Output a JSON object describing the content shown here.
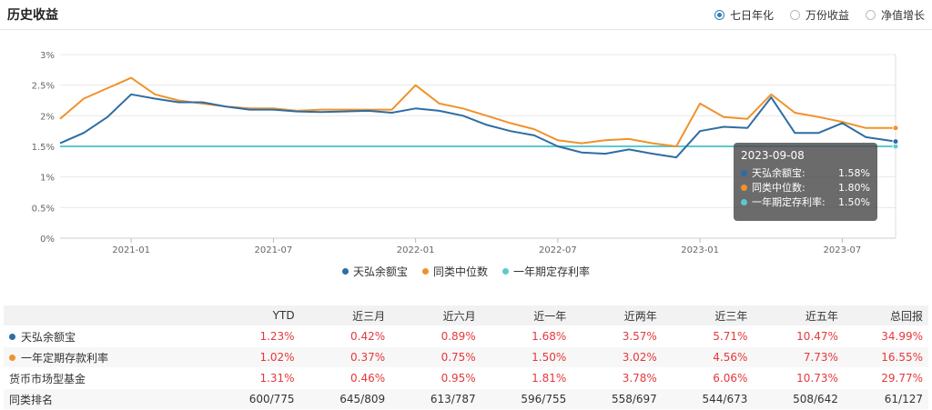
{
  "header": {
    "title": "历史收益",
    "radios": [
      {
        "label": "七日年化",
        "selected": true
      },
      {
        "label": "万份收益",
        "selected": false
      },
      {
        "label": "净值增长",
        "selected": false
      }
    ]
  },
  "colors": {
    "fund": "#2e6da4",
    "median": "#f0922b",
    "deposit": "#5ec8cf",
    "positive": "#e4393c"
  },
  "chart_data": {
    "type": "line",
    "title": "",
    "x_start": "2020-10",
    "x_end": "2023-09-08",
    "x_ticks": [
      "2021-01",
      "2021-07",
      "2022-01",
      "2022-07",
      "2023-01",
      "2023-07"
    ],
    "y_ticks": [
      "0%",
      "0.5%",
      "1%",
      "1.5%",
      "2%",
      "2.5%",
      "3%"
    ],
    "ylim": [
      0,
      3
    ],
    "series": [
      {
        "name": "天弘余额宝",
        "color": "#2e6da4",
        "x": [
          "2020-10",
          "2020-11",
          "2020-12",
          "2021-01",
          "2021-02",
          "2021-03",
          "2021-04",
          "2021-05",
          "2021-06",
          "2021-07",
          "2021-08",
          "2021-09",
          "2021-10",
          "2021-11",
          "2021-12",
          "2022-01",
          "2022-02",
          "2022-03",
          "2022-04",
          "2022-05",
          "2022-06",
          "2022-07",
          "2022-08",
          "2022-09",
          "2022-10",
          "2022-11",
          "2022-12",
          "2023-01",
          "2023-02",
          "2023-03",
          "2023-04",
          "2023-05",
          "2023-06",
          "2023-07",
          "2023-08",
          "2023-09"
        ],
        "values": [
          1.55,
          1.72,
          1.98,
          2.35,
          2.28,
          2.22,
          2.22,
          2.15,
          2.1,
          2.1,
          2.07,
          2.06,
          2.07,
          2.08,
          2.05,
          2.12,
          2.08,
          2.0,
          1.85,
          1.75,
          1.68,
          1.5,
          1.4,
          1.38,
          1.45,
          1.38,
          1.32,
          1.75,
          1.82,
          1.8,
          2.3,
          1.72,
          1.72,
          1.88,
          1.65,
          1.58
        ]
      },
      {
        "name": "同类中位数",
        "color": "#f0922b",
        "x": [
          "2020-10",
          "2020-11",
          "2020-12",
          "2021-01",
          "2021-02",
          "2021-03",
          "2021-04",
          "2021-05",
          "2021-06",
          "2021-07",
          "2021-08",
          "2021-09",
          "2021-10",
          "2021-11",
          "2021-12",
          "2022-01",
          "2022-02",
          "2022-03",
          "2022-04",
          "2022-05",
          "2022-06",
          "2022-07",
          "2022-08",
          "2022-09",
          "2022-10",
          "2022-11",
          "2022-12",
          "2023-01",
          "2023-02",
          "2023-03",
          "2023-04",
          "2023-05",
          "2023-06",
          "2023-07",
          "2023-08",
          "2023-09"
        ],
        "values": [
          1.95,
          2.28,
          2.45,
          2.62,
          2.35,
          2.25,
          2.2,
          2.15,
          2.12,
          2.12,
          2.08,
          2.1,
          2.1,
          2.1,
          2.1,
          2.5,
          2.2,
          2.12,
          2.0,
          1.88,
          1.78,
          1.6,
          1.55,
          1.6,
          1.62,
          1.55,
          1.5,
          2.2,
          1.98,
          1.95,
          2.35,
          2.05,
          1.98,
          1.9,
          1.8,
          1.8
        ]
      },
      {
        "name": "一年期定存利率",
        "color": "#5ec8cf",
        "x": [
          "2020-10",
          "2023-09"
        ],
        "values": [
          1.5,
          1.5
        ]
      }
    ],
    "tooltip": {
      "date": "2023-09-08",
      "rows": [
        {
          "name": "天弘余额宝:",
          "value": "1.58%"
        },
        {
          "name": "同类中位数:",
          "value": "1.80%"
        },
        {
          "name": "一年期定存利率:",
          "value": "1.50%"
        }
      ]
    }
  },
  "legend": [
    {
      "label": "天弘余额宝",
      "color": "#2e6da4"
    },
    {
      "label": "同类中位数",
      "color": "#f0922b"
    },
    {
      "label": "一年期定存利率",
      "color": "#5ec8cf"
    }
  ],
  "table": {
    "headers": [
      "",
      "YTD",
      "近三月",
      "近六月",
      "近一年",
      "近两年",
      "近三年",
      "近五年",
      "总回报"
    ],
    "rows": [
      {
        "label": "天弘余额宝",
        "dot": "#2e6da4",
        "values": [
          "1.23%",
          "0.42%",
          "0.89%",
          "1.68%",
          "3.57%",
          "5.71%",
          "10.47%",
          "34.99%"
        ],
        "red": true
      },
      {
        "label": "一年定期存款利率",
        "dot": "#f0922b",
        "values": [
          "1.02%",
          "0.37%",
          "0.75%",
          "1.50%",
          "3.02%",
          "4.56%",
          "7.73%",
          "16.55%"
        ],
        "red": true
      },
      {
        "label": "货币市场型基金",
        "dot": null,
        "values": [
          "1.31%",
          "0.46%",
          "0.95%",
          "1.81%",
          "3.78%",
          "6.06%",
          "10.73%",
          "29.77%"
        ],
        "red": true
      },
      {
        "label": "同类排名",
        "dot": null,
        "values": [
          "600/775",
          "645/809",
          "613/787",
          "596/755",
          "558/697",
          "544/673",
          "508/642",
          "61/127"
        ],
        "red": false
      }
    ]
  }
}
